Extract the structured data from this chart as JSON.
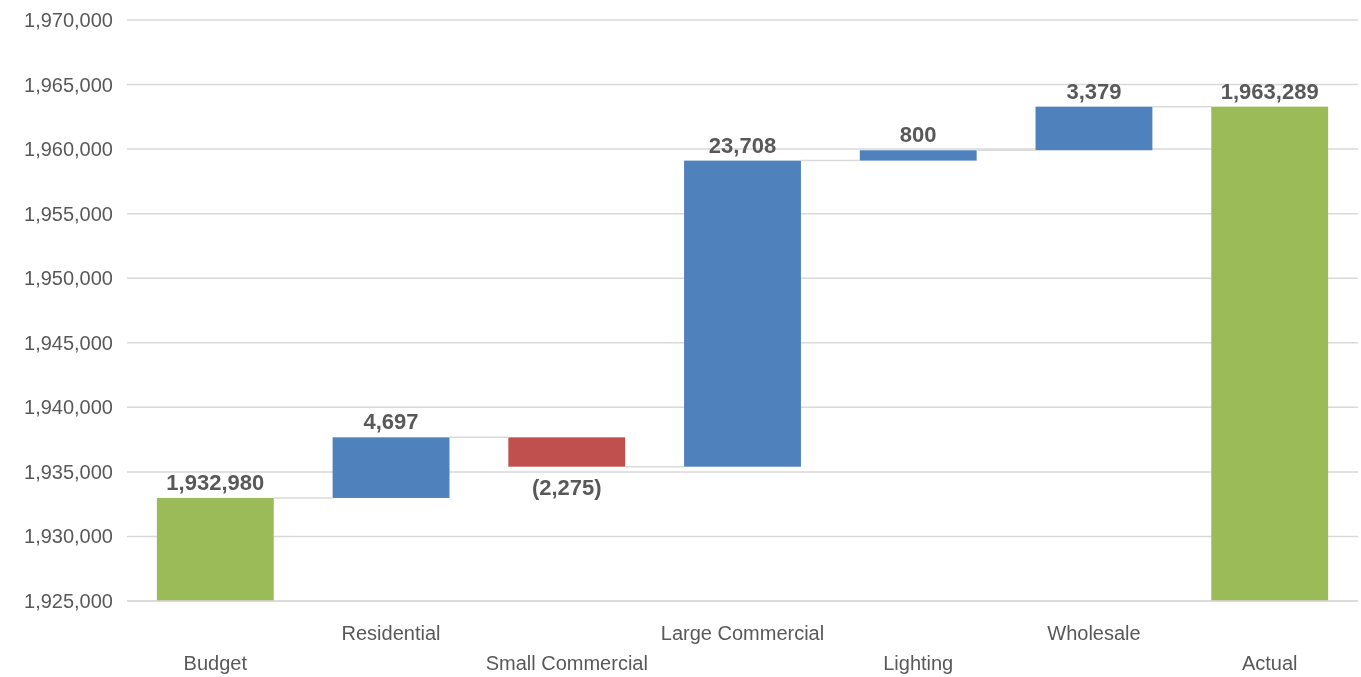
{
  "chart_data": {
    "type": "bar",
    "categories": [
      "Budget",
      "Residential",
      "Small Commercial",
      "Large Commercial",
      "Lighting",
      "Wholesale",
      "Actual"
    ],
    "values": [
      7980,
      4697,
      -2275,
      23708,
      800,
      3379,
      38289
    ],
    "base": [
      1925000,
      1932980,
      1937677,
      1935402,
      1959110,
      1959910,
      1925000
    ],
    "colors": [
      "#9bbb59",
      "#4f81bd",
      "#c0504d",
      "#4f81bd",
      "#4f81bd",
      "#4f81bd",
      "#9bbb59"
    ],
    "value_labels": [
      "1,932,980",
      "4,697",
      "(2,275)",
      "23,708",
      "800",
      "3,379",
      "1,963,289"
    ],
    "ylim": [
      1925000,
      1970000
    ],
    "yticks": [
      {
        "value": 1925000,
        "label": "1,925,000"
      },
      {
        "value": 1930000,
        "label": "1,930,000"
      },
      {
        "value": 1935000,
        "label": "1,935,000"
      },
      {
        "value": 1940000,
        "label": "1,940,000"
      },
      {
        "value": 1945000,
        "label": "1,945,000"
      },
      {
        "value": 1950000,
        "label": "1,950,000"
      },
      {
        "value": 1955000,
        "label": "1,955,000"
      },
      {
        "value": 1960000,
        "label": "1,960,000"
      },
      {
        "value": 1965000,
        "label": "1,965,000"
      },
      {
        "value": 1970000,
        "label": "1,970,000"
      }
    ],
    "grid": "y"
  }
}
